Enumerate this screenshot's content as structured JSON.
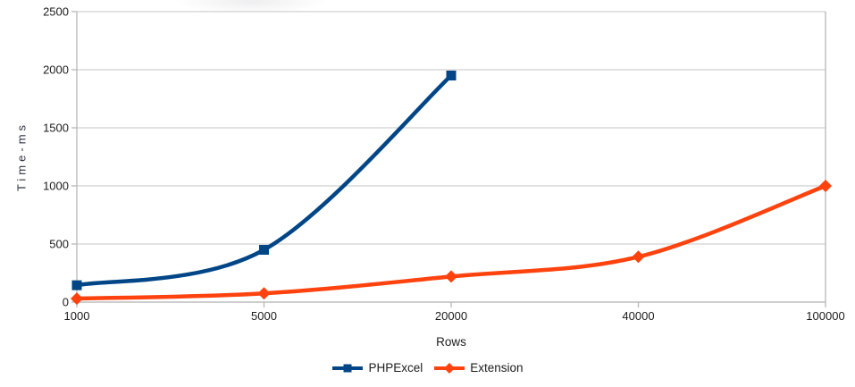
{
  "chart_data": {
    "type": "line",
    "title": "",
    "xlabel": "Rows",
    "ylabel": "Time-ms",
    "categories": [
      "1000",
      "5000",
      "20000",
      "40000",
      "100000"
    ],
    "y_tick_labels": [
      "0",
      "500",
      "1000",
      "1500",
      "2000",
      "2500"
    ],
    "ylim": [
      0,
      2500
    ],
    "y_tick_step": 500,
    "grid": "horizontal gridlines only",
    "legend_position": "bottom-center",
    "line_style": "smooth",
    "series": [
      {
        "name": "PHPExcel",
        "color": "#004586",
        "marker": "square",
        "categories_covered": [
          "1000",
          "5000",
          "20000"
        ],
        "values": [
          145,
          450,
          1950
        ]
      },
      {
        "name": "Extension",
        "color": "#ff420e",
        "marker": "diamond",
        "categories_covered": [
          "1000",
          "5000",
          "20000",
          "40000",
          "100000"
        ],
        "values": [
          30,
          75,
          220,
          390,
          1000
        ]
      }
    ],
    "colors": {
      "gridline": "#d0d0d0",
      "axis": "#b7b7b7",
      "text": "#1c1c1c"
    }
  }
}
